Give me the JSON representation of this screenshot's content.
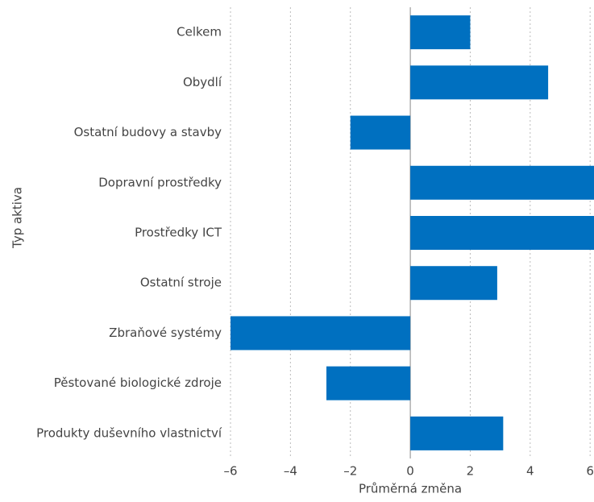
{
  "chart_data": {
    "type": "barh",
    "categories": [
      "Celkem",
      "Obydlí",
      "Ostatní budovy a stavby",
      "Dopravní prostředky",
      "Prostředky ICT",
      "Ostatní stroje",
      "Zbraňové systémy",
      "Pěstované biologické zdroje",
      "Produkty duševního vlastnictví"
    ],
    "values": [
      2.0,
      4.6,
      -2.0,
      6.2,
      6.2,
      2.9,
      -6.0,
      -2.8,
      3.1
    ],
    "color": "#0070c0",
    "xlim": [
      -6,
      6.13
    ],
    "xticks": [
      {
        "value": -6,
        "label": "–6"
      },
      {
        "value": -4,
        "label": "–4"
      },
      {
        "value": -2,
        "label": "–2"
      },
      0,
      2,
      4,
      6
    ],
    "grid": true,
    "xlabel": "Průměrná změna",
    "ylabel": "Typ aktiva"
  }
}
